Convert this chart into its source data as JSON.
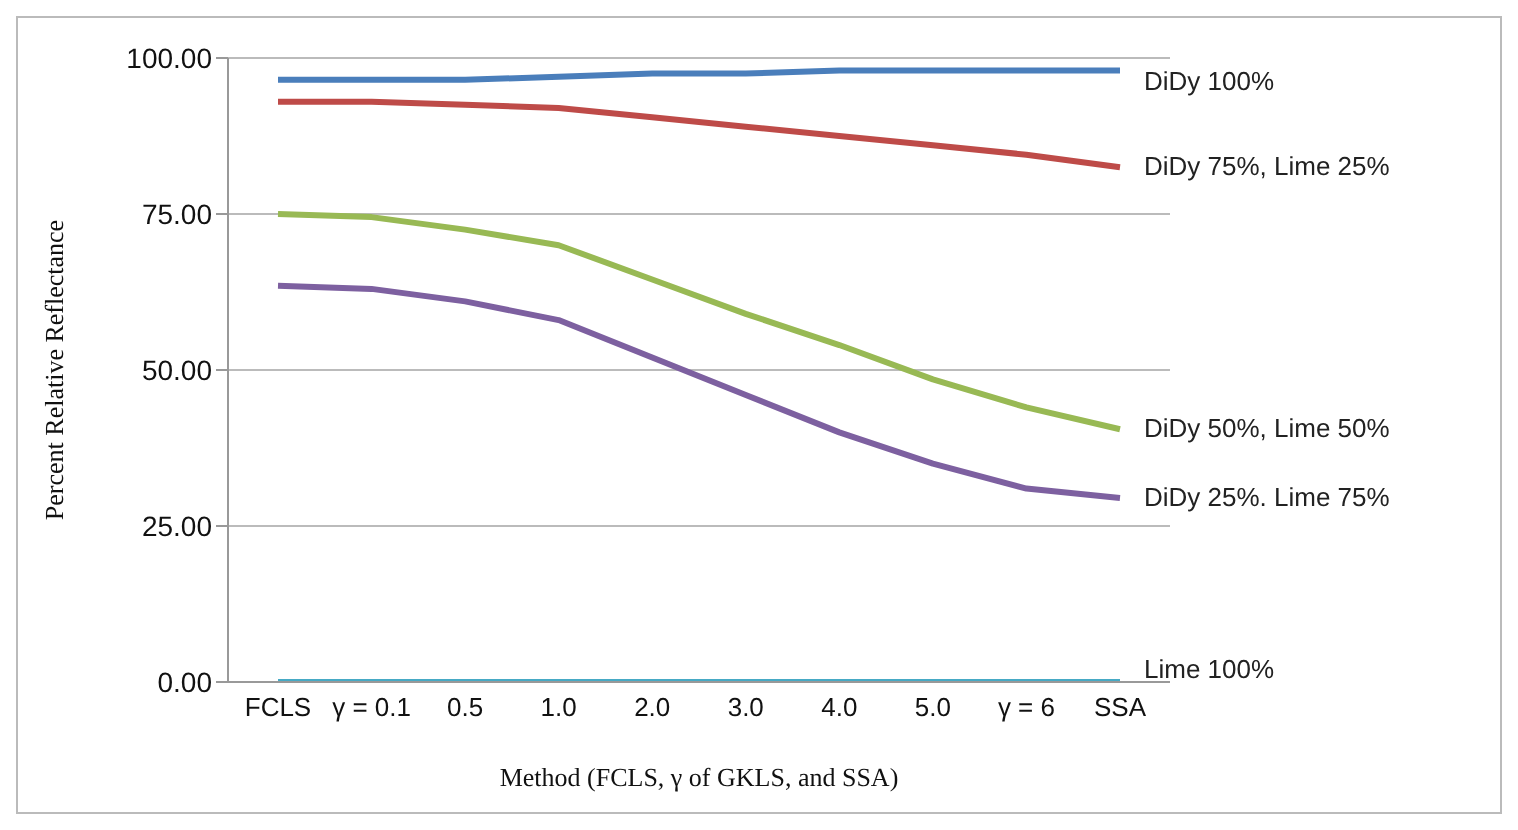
{
  "chart_data": {
    "type": "line",
    "xlabel": "Method (FCLS, γ of GKLS, and SSA)",
    "ylabel": "Percent Relative Reflectance",
    "categories": [
      "FCLS",
      "γ = 0.1",
      "0.5",
      "1.0",
      "2.0",
      "3.0",
      "4.0",
      "5.0",
      "γ = 6",
      "SSA"
    ],
    "ylim": [
      0,
      100
    ],
    "yticks": [
      {
        "value": 0,
        "label": "0.00"
      },
      {
        "value": 25,
        "label": "25.00"
      },
      {
        "value": 50,
        "label": "50.00"
      },
      {
        "value": 75,
        "label": "75.00"
      },
      {
        "value": 100,
        "label": "100.00"
      }
    ],
    "grid": "y",
    "legend": false,
    "marker": "none",
    "line_style": "solid",
    "series": [
      {
        "name": "DiDy 100%",
        "color": "#4a7ebb",
        "values": [
          96.5,
          96.5,
          96.5,
          97,
          97.5,
          97.5,
          98,
          98,
          98,
          98
        ]
      },
      {
        "name": "DiDy 75%, Lime 25%",
        "color": "#be4b48",
        "values": [
          93,
          93,
          92.5,
          92,
          90.5,
          89,
          87.5,
          86,
          84.5,
          82.5
        ]
      },
      {
        "name": "DiDy 50%, Lime 50%",
        "color": "#98b954",
        "values": [
          75,
          74.5,
          72.5,
          70,
          64.5,
          59,
          54,
          48.5,
          44,
          40.5
        ]
      },
      {
        "name": "DiDy 25%. Lime 75%",
        "color": "#7d60a0",
        "values": [
          63.5,
          63,
          61,
          58,
          52,
          46,
          40,
          35,
          31,
          29.5
        ]
      },
      {
        "name": "Lime 100%",
        "color": "#46aac5",
        "values": [
          0,
          0,
          0,
          0,
          0,
          0,
          0,
          0,
          0,
          0
        ]
      }
    ]
  }
}
